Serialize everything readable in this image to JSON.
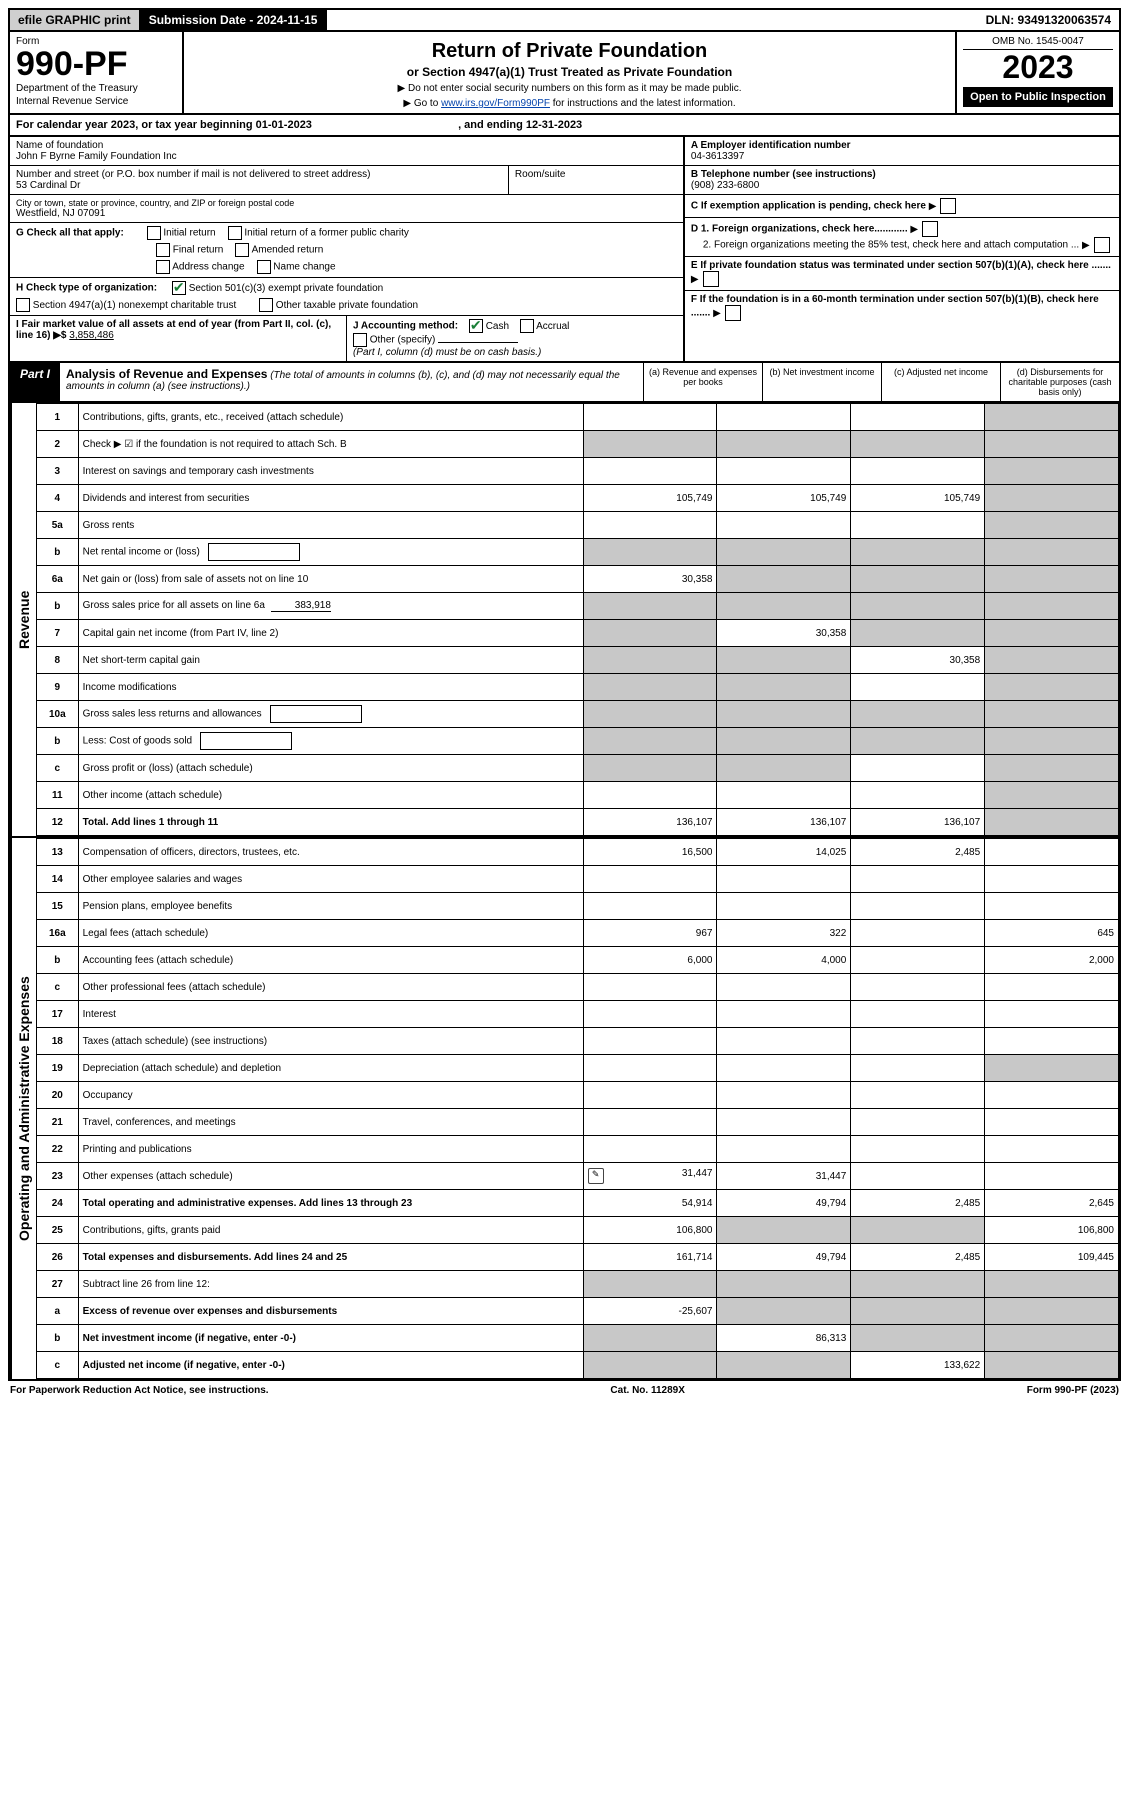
{
  "topbar": {
    "efile": "efile GRAPHIC print",
    "submission": "Submission Date - 2024-11-15",
    "dln": "DLN: 93491320063574"
  },
  "header": {
    "form_word": "Form",
    "form_num": "990-PF",
    "dept": "Department of the Treasury",
    "irs": "Internal Revenue Service",
    "title": "Return of Private Foundation",
    "subtitle": "or Section 4947(a)(1) Trust Treated as Private Foundation",
    "note1": "▶ Do not enter social security numbers on this form as it may be made public.",
    "note2_pre": "▶ Go to ",
    "note2_link": "www.irs.gov/Form990PF",
    "note2_post": " for instructions and the latest information.",
    "omb": "OMB No. 1545-0047",
    "year": "2023",
    "open": "Open to Public Inspection"
  },
  "year_line": {
    "prefix": "For calendar year 2023, or tax year beginning ",
    "begin": "01-01-2023",
    "mid": " , and ending ",
    "end": "12-31-2023"
  },
  "ident": {
    "name_label": "Name of foundation",
    "name": "John F Byrne Family Foundation Inc",
    "street_label": "Number and street (or P.O. box number if mail is not delivered to street address)",
    "street": "53 Cardinal Dr",
    "room_label": "Room/suite",
    "city_label": "City or town, state or province, country, and ZIP or foreign postal code",
    "city": "Westfield, NJ  07091",
    "a_label": "A Employer identification number",
    "a_val": "04-3613397",
    "b_label": "B Telephone number (see instructions)",
    "b_val": "(908) 233-6800",
    "c_label": "C If exemption application is pending, check here",
    "g_label": "G Check all that apply:",
    "g_opts": [
      "Initial return",
      "Initial return of a former public charity",
      "Final return",
      "Amended return",
      "Address change",
      "Name change"
    ],
    "d1": "D 1. Foreign organizations, check here............",
    "d2": "2. Foreign organizations meeting the 85% test, check here and attach computation ...",
    "h_label": "H Check type of organization:",
    "h1": "Section 501(c)(3) exempt private foundation",
    "h2": "Section 4947(a)(1) nonexempt charitable trust",
    "h3": "Other taxable private foundation",
    "e_label": "E If private foundation status was terminated under section 507(b)(1)(A), check here .......",
    "i_label": "I Fair market value of all assets at end of year (from Part II, col. (c), line 16) ▶$",
    "i_val": "3,858,486",
    "j_label": "J Accounting method:",
    "j1": "Cash",
    "j2": "Accrual",
    "j3": "Other (specify)",
    "j_note": "(Part I, column (d) must be on cash basis.)",
    "f_label": "F If the foundation is in a 60-month termination under section 507(b)(1)(B), check here ......."
  },
  "part1": {
    "tag": "Part I",
    "title": "Analysis of Revenue and Expenses",
    "desc": " (The total of amounts in columns (b), (c), and (d) may not necessarily equal the amounts in column (a) (see instructions).)",
    "col_a": "(a) Revenue and expenses per books",
    "col_b": "(b) Net investment income",
    "col_c": "(c) Adjusted net income",
    "col_d": "(d) Disbursements for charitable purposes (cash basis only)"
  },
  "sections": {
    "revenue": "Revenue",
    "expenses": "Operating and Administrative Expenses"
  },
  "rows": [
    {
      "n": "1",
      "lbl": "Contributions, gifts, grants, etc., received (attach schedule)",
      "a": "",
      "b": "",
      "c": "",
      "d": "shade"
    },
    {
      "n": "2",
      "lbl": "Check ▶ ☑ if the foundation is not required to attach Sch. B",
      "a": "shade",
      "b": "shade",
      "c": "shade",
      "d": "shade",
      "chk": true
    },
    {
      "n": "3",
      "lbl": "Interest on savings and temporary cash investments",
      "a": "",
      "b": "",
      "c": "",
      "d": "shade"
    },
    {
      "n": "4",
      "lbl": "Dividends and interest from securities",
      "a": "105,749",
      "b": "105,749",
      "c": "105,749",
      "d": "shade"
    },
    {
      "n": "5a",
      "lbl": "Gross rents",
      "a": "",
      "b": "",
      "c": "",
      "d": "shade"
    },
    {
      "n": "b",
      "lbl": "Net rental income or (loss)",
      "a": "shade",
      "b": "shade",
      "c": "shade",
      "d": "shade",
      "box": true
    },
    {
      "n": "6a",
      "lbl": "Net gain or (loss) from sale of assets not on line 10",
      "a": "30,358",
      "b": "shade",
      "c": "shade",
      "d": "shade"
    },
    {
      "n": "b",
      "lbl": "Gross sales price for all assets on line 6a",
      "a": "shade",
      "b": "shade",
      "c": "shade",
      "d": "shade",
      "inline": "383,918"
    },
    {
      "n": "7",
      "lbl": "Capital gain net income (from Part IV, line 2)",
      "a": "shade",
      "b": "30,358",
      "c": "shade",
      "d": "shade"
    },
    {
      "n": "8",
      "lbl": "Net short-term capital gain",
      "a": "shade",
      "b": "shade",
      "c": "30,358",
      "d": "shade"
    },
    {
      "n": "9",
      "lbl": "Income modifications",
      "a": "shade",
      "b": "shade",
      "c": "",
      "d": "shade"
    },
    {
      "n": "10a",
      "lbl": "Gross sales less returns and allowances",
      "a": "shade",
      "b": "shade",
      "c": "shade",
      "d": "shade",
      "box": true
    },
    {
      "n": "b",
      "lbl": "Less: Cost of goods sold",
      "a": "shade",
      "b": "shade",
      "c": "shade",
      "d": "shade",
      "box": true
    },
    {
      "n": "c",
      "lbl": "Gross profit or (loss) (attach schedule)",
      "a": "shade",
      "b": "shade",
      "c": "",
      "d": "shade"
    },
    {
      "n": "11",
      "lbl": "Other income (attach schedule)",
      "a": "",
      "b": "",
      "c": "",
      "d": "shade"
    },
    {
      "n": "12",
      "lbl": "Total. Add lines 1 through 11",
      "a": "136,107",
      "b": "136,107",
      "c": "136,107",
      "d": "shade",
      "bold": true
    }
  ],
  "exp_rows": [
    {
      "n": "13",
      "lbl": "Compensation of officers, directors, trustees, etc.",
      "a": "16,500",
      "b": "14,025",
      "c": "2,485",
      "d": ""
    },
    {
      "n": "14",
      "lbl": "Other employee salaries and wages",
      "a": "",
      "b": "",
      "c": "",
      "d": ""
    },
    {
      "n": "15",
      "lbl": "Pension plans, employee benefits",
      "a": "",
      "b": "",
      "c": "",
      "d": ""
    },
    {
      "n": "16a",
      "lbl": "Legal fees (attach schedule)",
      "a": "967",
      "b": "322",
      "c": "",
      "d": "645"
    },
    {
      "n": "b",
      "lbl": "Accounting fees (attach schedule)",
      "a": "6,000",
      "b": "4,000",
      "c": "",
      "d": "2,000"
    },
    {
      "n": "c",
      "lbl": "Other professional fees (attach schedule)",
      "a": "",
      "b": "",
      "c": "",
      "d": ""
    },
    {
      "n": "17",
      "lbl": "Interest",
      "a": "",
      "b": "",
      "c": "",
      "d": ""
    },
    {
      "n": "18",
      "lbl": "Taxes (attach schedule) (see instructions)",
      "a": "",
      "b": "",
      "c": "",
      "d": ""
    },
    {
      "n": "19",
      "lbl": "Depreciation (attach schedule) and depletion",
      "a": "",
      "b": "",
      "c": "",
      "d": "shade"
    },
    {
      "n": "20",
      "lbl": "Occupancy",
      "a": "",
      "b": "",
      "c": "",
      "d": ""
    },
    {
      "n": "21",
      "lbl": "Travel, conferences, and meetings",
      "a": "",
      "b": "",
      "c": "",
      "d": ""
    },
    {
      "n": "22",
      "lbl": "Printing and publications",
      "a": "",
      "b": "",
      "c": "",
      "d": ""
    },
    {
      "n": "23",
      "lbl": "Other expenses (attach schedule)",
      "a": "31,447",
      "b": "31,447",
      "c": "",
      "d": "",
      "icon": true
    },
    {
      "n": "24",
      "lbl": "Total operating and administrative expenses. Add lines 13 through 23",
      "a": "54,914",
      "b": "49,794",
      "c": "2,485",
      "d": "2,645",
      "bold": true
    },
    {
      "n": "25",
      "lbl": "Contributions, gifts, grants paid",
      "a": "106,800",
      "b": "shade",
      "c": "shade",
      "d": "106,800"
    },
    {
      "n": "26",
      "lbl": "Total expenses and disbursements. Add lines 24 and 25",
      "a": "161,714",
      "b": "49,794",
      "c": "2,485",
      "d": "109,445",
      "bold": true
    },
    {
      "n": "27",
      "lbl": "Subtract line 26 from line 12:",
      "a": "shade",
      "b": "shade",
      "c": "shade",
      "d": "shade"
    },
    {
      "n": "a",
      "lbl": "Excess of revenue over expenses and disbursements",
      "a": "-25,607",
      "b": "shade",
      "c": "shade",
      "d": "shade",
      "bold": true
    },
    {
      "n": "b",
      "lbl": "Net investment income (if negative, enter -0-)",
      "a": "shade",
      "b": "86,313",
      "c": "shade",
      "d": "shade",
      "bold": true
    },
    {
      "n": "c",
      "lbl": "Adjusted net income (if negative, enter -0-)",
      "a": "shade",
      "b": "shade",
      "c": "133,622",
      "d": "shade",
      "bold": true
    }
  ],
  "footer": {
    "left": "For Paperwork Reduction Act Notice, see instructions.",
    "mid": "Cat. No. 11289X",
    "right": "Form 990-PF (2023)"
  }
}
